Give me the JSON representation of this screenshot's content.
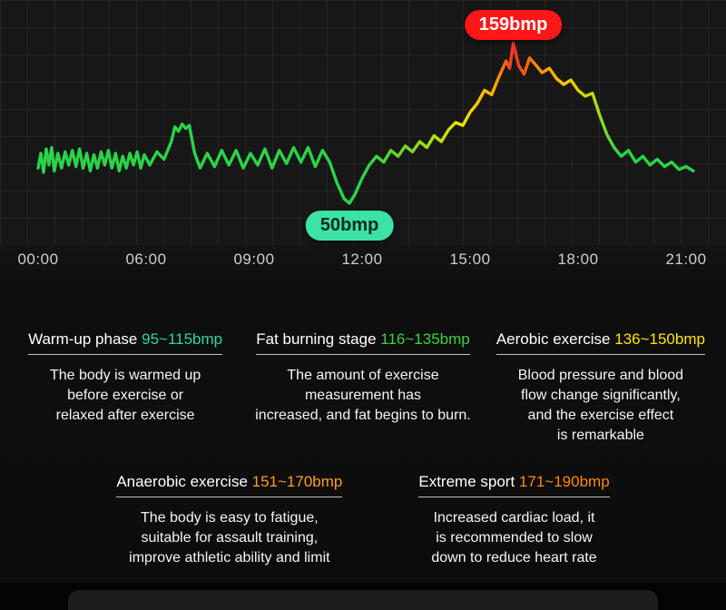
{
  "chart_data": {
    "type": "line",
    "title": "",
    "xlabel": "",
    "ylabel": "",
    "unit": "bmp",
    "grid": true,
    "ylim": [
      40,
      170
    ],
    "x_ticks": [
      {
        "hour": 0,
        "label": "00:00"
      },
      {
        "hour": 6,
        "label": "06:00"
      },
      {
        "hour": 9,
        "label": "09:00"
      },
      {
        "hour": 12,
        "label": "12:00"
      },
      {
        "hour": 15,
        "label": "15:00"
      },
      {
        "hour": 18,
        "label": "18:00"
      },
      {
        "hour": 21,
        "label": "21:00"
      }
    ],
    "annotations": [
      {
        "name": "peak-hr-badge",
        "label": "159bmp",
        "hour": 16.2,
        "bpm": 159,
        "placement": "above",
        "bg_color": "#ff1717",
        "text_color": "#ffffff"
      },
      {
        "name": "min-hr-badge",
        "label": "50bmp",
        "hour": 11.65,
        "bpm": 50,
        "placement": "below",
        "bg_color": "#3ce3a4",
        "text_color": "#0c2b20"
      }
    ],
    "line_gradient": [
      {
        "offset": "0%",
        "color": "#2bd348"
      },
      {
        "offset": "50%",
        "color": "#2bd348"
      },
      {
        "offset": "57%",
        "color": "#85d823"
      },
      {
        "offset": "63.5%",
        "color": "#e8e400"
      },
      {
        "offset": "68.5%",
        "color": "#ffb000"
      },
      {
        "offset": "71.5%",
        "color": "#ff2a2a"
      },
      {
        "offset": "74.5%",
        "color": "#ff8800"
      },
      {
        "offset": "79%",
        "color": "#ffc800"
      },
      {
        "offset": "83.5%",
        "color": "#b2dc12"
      },
      {
        "offset": "87%",
        "color": "#2bd348"
      },
      {
        "offset": "100%",
        "color": "#2bd348"
      }
    ],
    "points": [
      [
        0.0,
        74
      ],
      [
        0.15,
        84
      ],
      [
        0.3,
        71
      ],
      [
        0.45,
        87
      ],
      [
        0.6,
        76
      ],
      [
        0.75,
        88
      ],
      [
        0.9,
        72
      ],
      [
        1.1,
        84
      ],
      [
        1.3,
        74
      ],
      [
        1.5,
        85
      ],
      [
        1.7,
        76
      ],
      [
        1.9,
        86
      ],
      [
        2.1,
        75
      ],
      [
        2.3,
        87
      ],
      [
        2.5,
        74
      ],
      [
        2.7,
        84
      ],
      [
        2.9,
        72
      ],
      [
        3.1,
        83
      ],
      [
        3.3,
        74
      ],
      [
        3.5,
        85
      ],
      [
        3.7,
        76
      ],
      [
        3.9,
        86
      ],
      [
        4.1,
        74
      ],
      [
        4.3,
        84
      ],
      [
        4.5,
        72
      ],
      [
        4.7,
        82
      ],
      [
        4.9,
        74
      ],
      [
        5.1,
        84
      ],
      [
        5.3,
        76
      ],
      [
        5.5,
        85
      ],
      [
        5.7,
        74
      ],
      [
        5.9,
        83
      ],
      [
        6.1,
        76
      ],
      [
        6.3,
        85
      ],
      [
        6.5,
        80
      ],
      [
        6.7,
        92
      ],
      [
        6.8,
        102
      ],
      [
        6.9,
        99
      ],
      [
        7.0,
        104
      ],
      [
        7.1,
        101
      ],
      [
        7.2,
        103
      ],
      [
        7.35,
        84
      ],
      [
        7.5,
        74
      ],
      [
        7.7,
        84
      ],
      [
        7.9,
        75
      ],
      [
        8.1,
        86
      ],
      [
        8.3,
        76
      ],
      [
        8.5,
        86
      ],
      [
        8.7,
        74
      ],
      [
        8.9,
        84
      ],
      [
        9.1,
        76
      ],
      [
        9.3,
        87
      ],
      [
        9.5,
        74
      ],
      [
        9.7,
        86
      ],
      [
        9.9,
        77
      ],
      [
        10.1,
        88
      ],
      [
        10.3,
        78
      ],
      [
        10.5,
        88
      ],
      [
        10.7,
        75
      ],
      [
        10.9,
        86
      ],
      [
        11.1,
        78
      ],
      [
        11.3,
        64
      ],
      [
        11.5,
        53
      ],
      [
        11.65,
        50
      ],
      [
        11.8,
        56
      ],
      [
        12.0,
        67
      ],
      [
        12.2,
        76
      ],
      [
        12.4,
        82
      ],
      [
        12.6,
        78
      ],
      [
        12.8,
        86
      ],
      [
        13.0,
        82
      ],
      [
        13.2,
        89
      ],
      [
        13.4,
        85
      ],
      [
        13.6,
        92
      ],
      [
        13.8,
        88
      ],
      [
        14.0,
        96
      ],
      [
        14.2,
        92
      ],
      [
        14.4,
        100
      ],
      [
        14.6,
        105
      ],
      [
        14.8,
        103
      ],
      [
        15.0,
        112
      ],
      [
        15.2,
        118
      ],
      [
        15.4,
        127
      ],
      [
        15.6,
        124
      ],
      [
        15.8,
        136
      ],
      [
        16.0,
        147
      ],
      [
        16.1,
        142
      ],
      [
        16.2,
        159
      ],
      [
        16.35,
        144
      ],
      [
        16.5,
        138
      ],
      [
        16.65,
        149
      ],
      [
        16.8,
        145
      ],
      [
        17.0,
        139
      ],
      [
        17.2,
        142
      ],
      [
        17.4,
        135
      ],
      [
        17.6,
        131
      ],
      [
        17.8,
        134
      ],
      [
        18.0,
        127
      ],
      [
        18.2,
        123
      ],
      [
        18.4,
        125
      ],
      [
        18.6,
        110
      ],
      [
        18.8,
        97
      ],
      [
        19.0,
        88
      ],
      [
        19.2,
        82
      ],
      [
        19.4,
        86
      ],
      [
        19.6,
        78
      ],
      [
        19.8,
        82
      ],
      [
        20.0,
        76
      ],
      [
        20.2,
        80
      ],
      [
        20.4,
        75
      ],
      [
        20.6,
        78
      ],
      [
        20.8,
        73
      ],
      [
        21.0,
        75
      ],
      [
        21.2,
        72
      ]
    ]
  },
  "zones": [
    {
      "name": "Warm-up phase",
      "range": "95~115bmp",
      "color": "#2fd6a0",
      "desc": "The body is warmed up\nbefore exercise or\nrelaxed after exercise"
    },
    {
      "name": "Fat burning stage",
      "range": "116~135bmp",
      "color": "#3ad33a",
      "desc": "The amount of exercise\nmeasurement has\nincreased, and fat begins to burn."
    },
    {
      "name": "Aerobic exercise",
      "range": "136~150bmp",
      "color": "#ffe400",
      "desc": "Blood pressure and blood\nflow change significantly,\nand the exercise effect\nis remarkable"
    },
    {
      "name": "Anaerobic exercise",
      "range": "151~170bmp",
      "color": "#ff9d1e",
      "desc": "The body is easy to fatigue,\nsuitable for assault training,\nimprove athletic ability and limit"
    },
    {
      "name": "Extreme sport",
      "range": "171~190bmp",
      "color": "#ff8a00",
      "desc": "Increased cardiac load, it\nis recommended to slow\ndown to reduce heart rate"
    }
  ]
}
